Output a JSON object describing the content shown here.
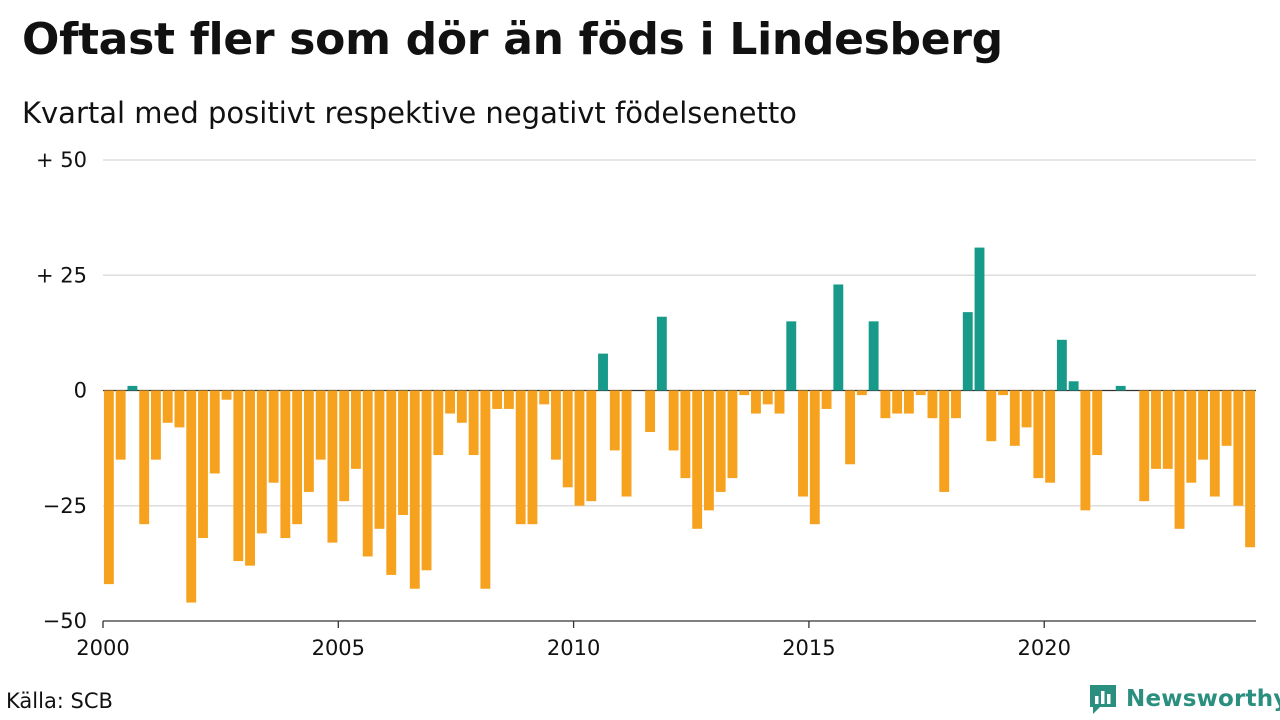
{
  "header": {
    "title": "Oftast fler som dör än föds i Lindesberg",
    "subtitle": "Kvartal med positivt respektive negativt födelsenetto"
  },
  "footer": {
    "source": "Källa: SCB",
    "brand": "Newsworthy",
    "brand_icon": "newsworthy-chart-logo-icon"
  },
  "colors": {
    "positive": "#179a89",
    "negative": "#f6a21e",
    "grid": "#dddddd",
    "axis": "#333333",
    "brand": "#2a8f7f"
  },
  "chart_data": {
    "type": "bar",
    "title": "Oftast fler som dör än föds i Lindesberg",
    "subtitle": "Kvartal med positivt respektive negativt födelsenetto",
    "ylim": [
      -50,
      50
    ],
    "y_ticks": [
      50,
      25,
      0,
      -25,
      -50
    ],
    "y_tick_labels": [
      "+ 50",
      "+ 25",
      "0",
      "−25",
      "−50"
    ],
    "x_start": 2000,
    "x_tick_labels": [
      "2000",
      "2005",
      "2010",
      "2015",
      "2020"
    ],
    "x_tick_years": [
      2000,
      2005,
      2010,
      2015,
      2020
    ],
    "grid": true,
    "values": [
      -42,
      -15,
      1,
      -29,
      -15,
      -7,
      -8,
      -46,
      -32,
      -18,
      -2,
      -37,
      -38,
      -31,
      -20,
      -32,
      -29,
      -22,
      -15,
      -33,
      -24,
      -17,
      -36,
      -30,
      -40,
      -27,
      -43,
      -39,
      -14,
      -5,
      -7,
      -14,
      -43,
      -4,
      -4,
      -29,
      -29,
      -3,
      -15,
      -21,
      -25,
      -24,
      8,
      -13,
      -23,
      0,
      -9,
      16,
      -13,
      -19,
      -30,
      -26,
      -22,
      -19,
      -1,
      -5,
      -3,
      -5,
      15,
      -23,
      -29,
      -4,
      23,
      -16,
      -1,
      15,
      -6,
      -5,
      -5,
      -1,
      -6,
      -22,
      -6,
      17,
      31,
      -11,
      -1,
      -12,
      -8,
      -19,
      -20,
      11,
      2,
      -26,
      -14,
      0,
      1,
      0,
      -24,
      -17,
      -17,
      -30,
      -20,
      -15,
      -23,
      -12,
      -25,
      -34
    ]
  }
}
